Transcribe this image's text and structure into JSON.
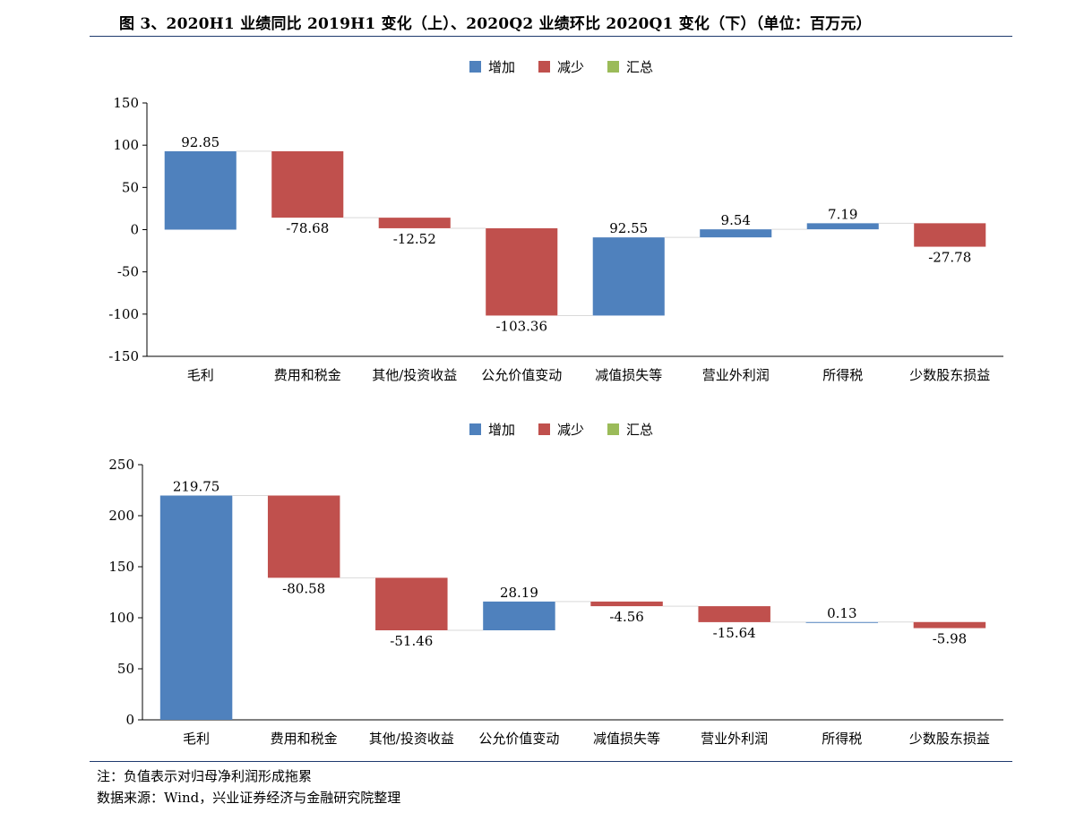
{
  "title": "图 3、2020H1 业绩同比 2019H1 变化（上）、2020Q2 业绩环比 2020Q1 变化（下）（单位：百万元）",
  "colors": {
    "increase": "#4f81bd",
    "decrease": "#c0504d",
    "total": "#9bbb59",
    "rule": "#1f3a6e"
  },
  "legend": [
    {
      "label": "增加",
      "color": "#4f81bd"
    },
    {
      "label": "减少",
      "color": "#c0504d"
    },
    {
      "label": "汇总",
      "color": "#9bbb59"
    }
  ],
  "chart_data": [
    {
      "type": "bar",
      "subtype": "waterfall",
      "title": "",
      "categories": [
        "毛利",
        "费用和税金",
        "其他/投资收益",
        "公允价值变动",
        "减值损失等",
        "营业外利润",
        "所得税",
        "少数股东损益"
      ],
      "values": [
        92.85,
        -78.68,
        -12.52,
        -103.36,
        92.55,
        9.54,
        7.19,
        -27.78
      ],
      "value_labels": [
        "92.85",
        "-78.68",
        "-12.52",
        "-103.36",
        "92.55",
        "9.54",
        "7.19",
        "-27.78"
      ],
      "start": 0,
      "ylim": [
        -150,
        150
      ],
      "yticks": [
        150,
        100,
        50,
        0,
        -50,
        -100,
        -150
      ],
      "grid": false,
      "legend_position": "top"
    },
    {
      "type": "bar",
      "subtype": "waterfall",
      "title": "",
      "categories": [
        "毛利",
        "费用和税金",
        "其他/投资收益",
        "公允价值变动",
        "减值损失等",
        "营业外利润",
        "所得税",
        "少数股东损益"
      ],
      "values": [
        219.75,
        -80.58,
        -51.46,
        28.19,
        -4.56,
        -15.64,
        0.13,
        -5.98
      ],
      "value_labels": [
        "219.75",
        "-80.58",
        "-51.46",
        "28.19",
        "-4.56",
        "-15.64",
        "0.13",
        "-5.98"
      ],
      "start": 0,
      "ylim": [
        0,
        250
      ],
      "yticks": [
        250,
        200,
        150,
        100,
        50,
        0
      ],
      "grid": false,
      "legend_position": "top"
    }
  ],
  "notes": {
    "note": "注：负值表示对归母净利润形成拖累",
    "source": "数据来源：Wind，兴业证券经济与金融研究院整理"
  }
}
